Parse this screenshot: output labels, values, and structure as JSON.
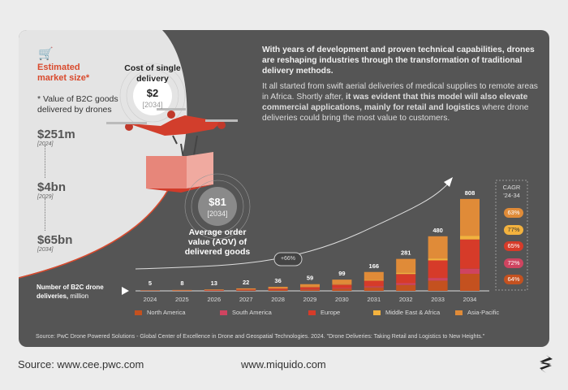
{
  "intro": {
    "lead": "With years of development and proven technical capabilities, drones are reshaping industries through the transformation of traditional delivery methods.",
    "body_start": "It all started from swift aerial deliveries of medical supplies to remote areas in Africa. Shortly after, ",
    "body_bold": "it was evident that this model will also elevate commercial applications, mainly for retail and logistics",
    "body_end": " where drone deliveries could bring the most value to customers."
  },
  "market": {
    "icon": "shopping-cart-icon",
    "title": "Estimated market size*",
    "note": "* Value of B2C goods delivered by drones",
    "values": [
      {
        "value": "$251m",
        "year": "[2024]"
      },
      {
        "value": "$4bn",
        "year": "[2029]"
      },
      {
        "value": "$65bn",
        "year": "[2034]"
      }
    ]
  },
  "cost": {
    "title": "Cost of single delivery",
    "value": "$2",
    "year": "[2034]"
  },
  "aov": {
    "title": "Average order value (AOV) of delivered goods",
    "value": "$81",
    "year": "[2034]"
  },
  "growth_label": "+66%",
  "cagr": {
    "title": "CAGR",
    "period": "'24-34"
  },
  "chart_data": {
    "type": "bar",
    "stacked": true,
    "ylabel_bold": "Number of B2C drone deliveries,",
    "ylabel_unit": "million",
    "categories": [
      "2024",
      "2025",
      "2026",
      "2027",
      "2028",
      "2029",
      "2030",
      "2031",
      "2032",
      "2033",
      "2034"
    ],
    "totals": [
      5,
      8,
      13,
      22,
      36,
      59,
      99,
      166,
      281,
      480,
      808
    ],
    "series": [
      {
        "name": "North America",
        "color": "#c4511f",
        "values": [
          1,
          2,
          3,
          5,
          7,
          12,
          20,
          31,
          52,
          90,
          150
        ],
        "cagr": "64%"
      },
      {
        "name": "South America",
        "color": "#cf4460",
        "values": [
          0,
          0,
          1,
          1,
          2,
          3,
          5,
          9,
          16,
          24,
          45
        ],
        "cagr": "72%"
      },
      {
        "name": "Europe",
        "color": "#d63b29",
        "values": [
          2,
          2,
          4,
          6,
          11,
          18,
          30,
          50,
          80,
          154,
          257
        ],
        "cagr": "65%"
      },
      {
        "name": "Middle East & Africa",
        "color": "#f3b23e",
        "values": [
          0,
          0,
          0,
          1,
          1,
          2,
          4,
          6,
          12,
          17,
          33
        ],
        "cagr": "77%"
      },
      {
        "name": "Asia-Pacific",
        "color": "#e08b38",
        "values": [
          2,
          4,
          5,
          9,
          15,
          24,
          40,
          70,
          121,
          195,
          323
        ],
        "cagr": "63%"
      }
    ]
  },
  "source_note": "Source: PwC Drone Powered Solutions - Global Center of Excellence in Drone and Geospatial Technologies. 2024. \"Drone Deliveries: Taking Retail and Logistics to New Heights.\"",
  "footer": {
    "source": "Source: www.cee.pwc.com",
    "site": "www.miquido.com",
    "logo": "miquido-logo"
  }
}
